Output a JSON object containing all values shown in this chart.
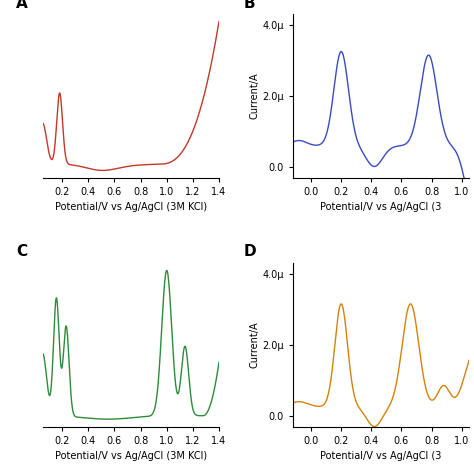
{
  "panel_A": {
    "color": "#c0392b",
    "label": "A",
    "xlabel": "Potential/V vs Ag/AgCl (3M KCl)",
    "xlim": [
      0.05,
      1.4
    ],
    "xticks": [
      0.2,
      0.4,
      0.6,
      0.8,
      1.0,
      1.2,
      1.4
    ],
    "xtick_labels": [
      "0.2",
      "0.4",
      "0.6",
      "0.8",
      "1.0",
      "1.2",
      "1.4"
    ]
  },
  "panel_B": {
    "color": "#3a4abf",
    "label": "B",
    "xlabel": "Potential/V vs Ag/AgCl (3",
    "ylabel": "Current/A",
    "xlim": [
      -0.12,
      1.05
    ],
    "ylim": [
      -3e-07,
      4.2e-06
    ],
    "yticks": [
      0.0,
      2e-06,
      4e-06
    ],
    "ytick_labels": [
      "0.0",
      "2.0μ",
      "4.0μ"
    ],
    "xticks": [
      0.0,
      0.2,
      0.4,
      0.6,
      0.8,
      1.0
    ],
    "xtick_labels": [
      "0.0",
      "0.2",
      "0.4",
      "0.6",
      "0.8",
      "1.0"
    ]
  },
  "panel_C": {
    "color": "#2e8b3a",
    "label": "C",
    "xlabel": "Potential/V vs Ag/AgCl (3M KCl)",
    "xlim": [
      0.05,
      1.4
    ],
    "xticks": [
      0.2,
      0.4,
      0.6,
      0.8,
      1.0,
      1.2,
      1.4
    ],
    "xtick_labels": [
      "0.2",
      "0.4",
      "0.6",
      "0.8",
      "1.0",
      "1.2",
      "1.4"
    ]
  },
  "panel_D": {
    "color": "#d4820a",
    "label": "D",
    "xlabel": "Potential/V vs Ag/AgCl (3",
    "ylabel": "Current/A",
    "xlim": [
      -0.12,
      1.05
    ],
    "ylim": [
      -3e-07,
      4.2e-06
    ],
    "yticks": [
      0.0,
      2e-06,
      4e-06
    ],
    "ytick_labels": [
      "0.0",
      "2.0μ",
      "4.0μ"
    ],
    "xticks": [
      0.0,
      0.2,
      0.4,
      0.6,
      0.8,
      1.0
    ],
    "xtick_labels": [
      "0.0",
      "0.2",
      "0.4",
      "0.6",
      "0.8",
      "1.0"
    ]
  },
  "background_color": "#ffffff",
  "font_size": 7,
  "label_fontsize": 11
}
